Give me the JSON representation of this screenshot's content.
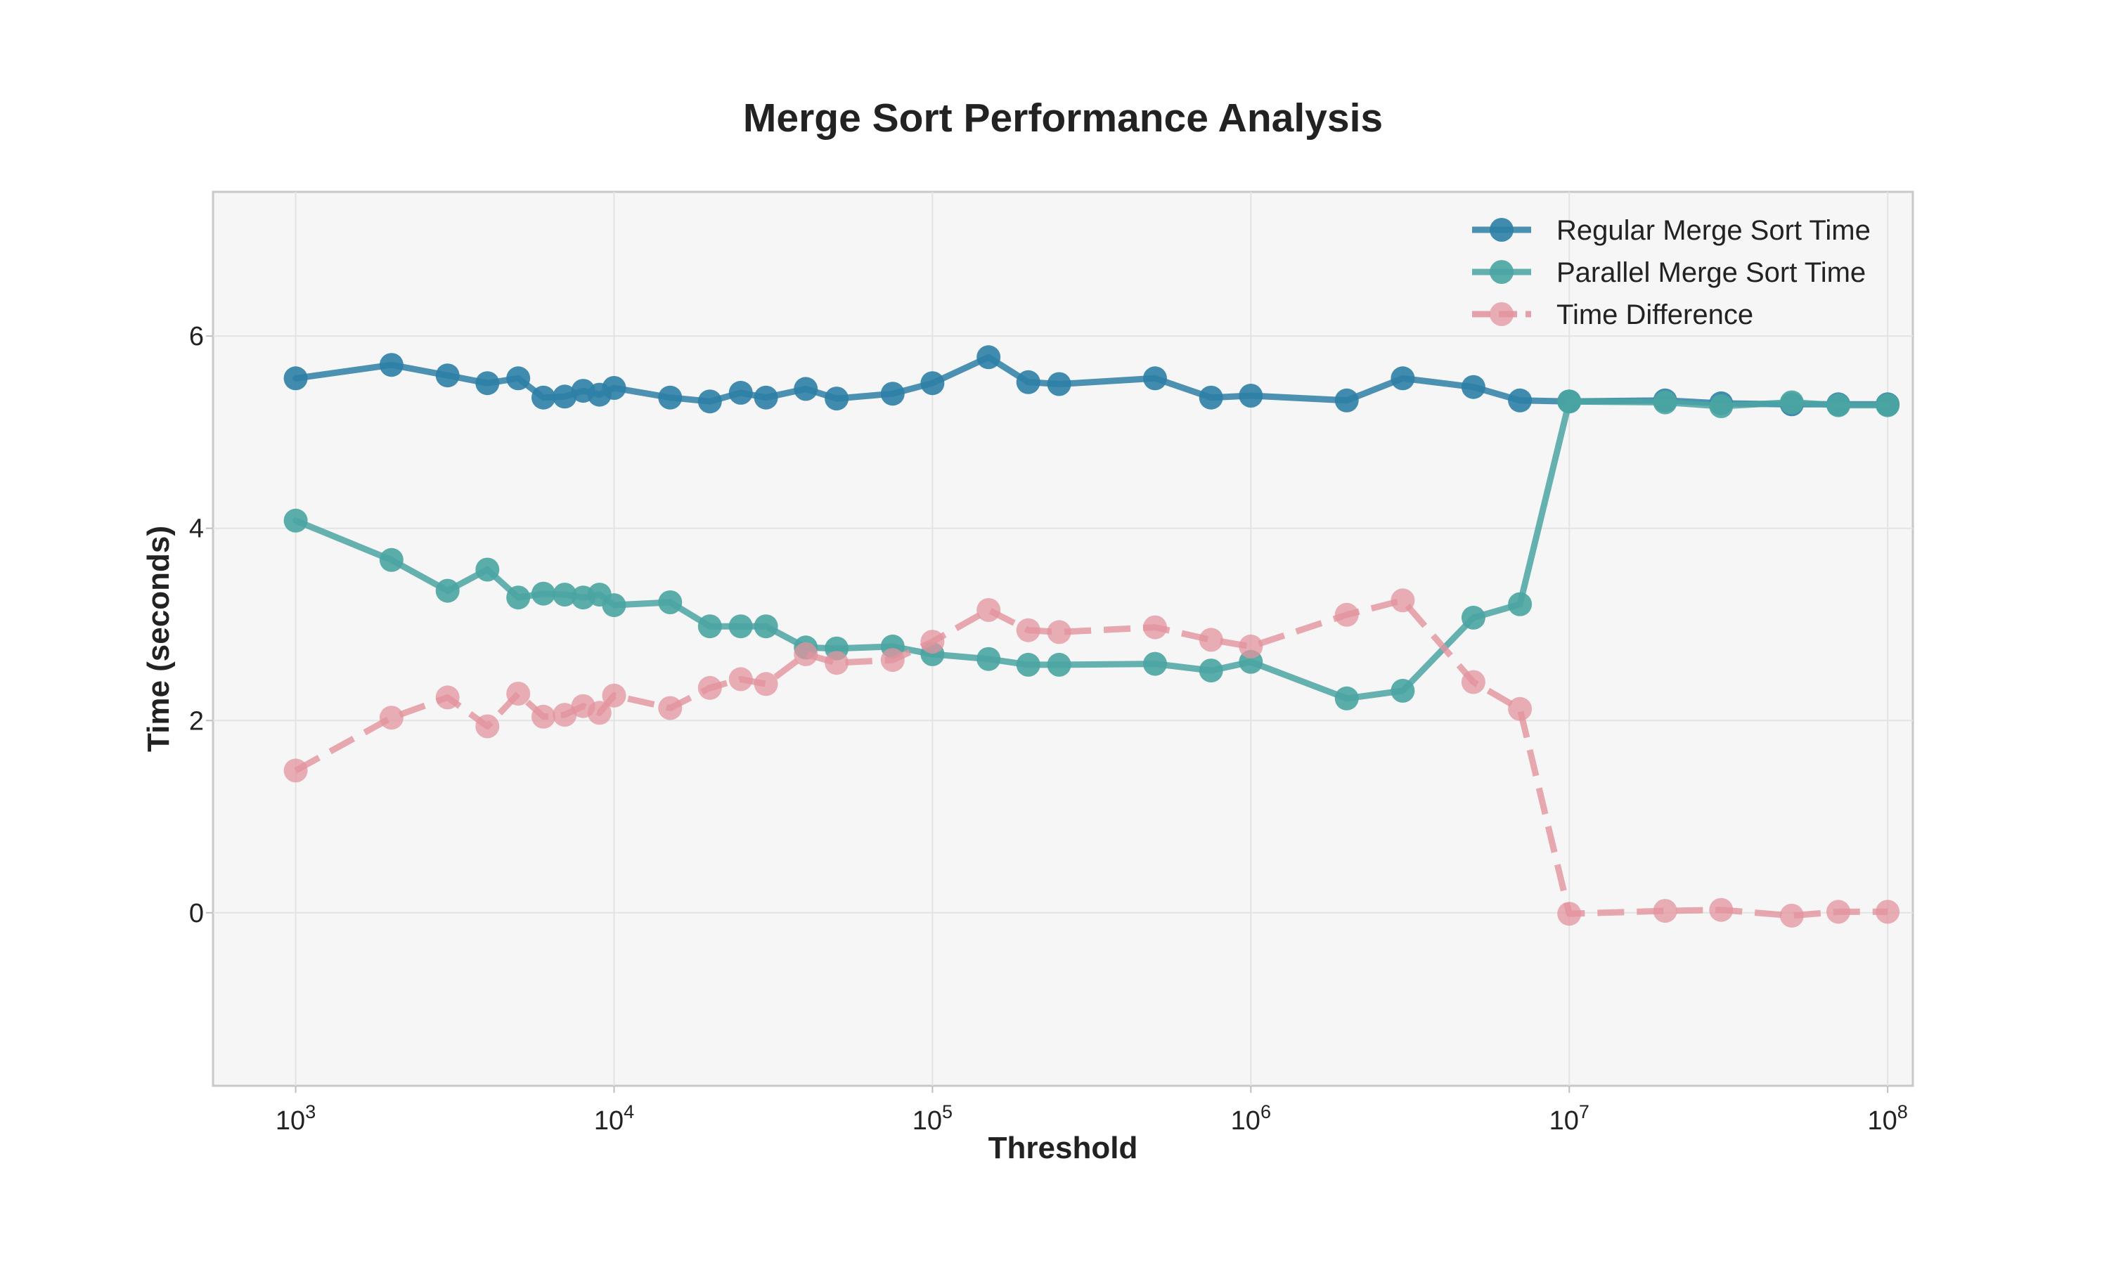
{
  "chart_data": {
    "type": "line",
    "title": "Merge Sort Performance Analysis",
    "xlabel": "Threshold",
    "ylabel": "Time (seconds)",
    "x_scale": "log",
    "xlim": [
      550,
      120000000
    ],
    "ylim": [
      -1.8,
      7.5
    ],
    "x_ticks": [
      {
        "value": 1000,
        "base": "10",
        "exp": "3"
      },
      {
        "value": 10000,
        "base": "10",
        "exp": "4"
      },
      {
        "value": 100000,
        "base": "10",
        "exp": "5"
      },
      {
        "value": 1000000,
        "base": "10",
        "exp": "6"
      },
      {
        "value": 10000000,
        "base": "10",
        "exp": "7"
      },
      {
        "value": 100000000,
        "base": "10",
        "exp": "8"
      }
    ],
    "y_ticks": [
      0,
      2,
      4,
      6
    ],
    "grid": true,
    "legend_position": "top-right",
    "x": [
      1000,
      2000,
      3000,
      4000,
      5000,
      6000,
      7000,
      8000,
      9000,
      10000,
      15000,
      20000,
      25000,
      30000,
      40000,
      50000,
      75000,
      100000,
      150000,
      200000,
      250000,
      500000,
      750000,
      1000000,
      2000000,
      3000000,
      5000000,
      7000000,
      10000000,
      20000000,
      30000000,
      50000000,
      70000000,
      100000000
    ],
    "series": [
      {
        "name": "Regular Merge Sort Time",
        "color": "#2e7fa6",
        "style": "solid",
        "values": [
          5.56,
          5.7,
          5.59,
          5.51,
          5.56,
          5.36,
          5.37,
          5.43,
          5.39,
          5.46,
          5.36,
          5.32,
          5.41,
          5.36,
          5.45,
          5.35,
          5.4,
          5.51,
          5.78,
          5.52,
          5.5,
          5.56,
          5.36,
          5.38,
          5.33,
          5.56,
          5.47,
          5.33,
          5.32,
          5.33,
          5.3,
          5.29,
          5.29,
          5.29
        ]
      },
      {
        "name": "Parallel Merge Sort Time",
        "color": "#4aa5a2",
        "style": "solid",
        "values": [
          4.08,
          3.67,
          3.35,
          3.57,
          3.28,
          3.32,
          3.31,
          3.28,
          3.31,
          3.2,
          3.23,
          2.98,
          2.98,
          2.98,
          2.76,
          2.75,
          2.77,
          2.69,
          2.64,
          2.58,
          2.58,
          2.59,
          2.52,
          2.61,
          2.23,
          2.31,
          3.07,
          3.21,
          5.32,
          5.31,
          5.27,
          5.31,
          5.28,
          5.28
        ]
      },
      {
        "name": "Time Difference",
        "color": "#e3939e",
        "style": "dashed",
        "values": [
          1.48,
          2.03,
          2.24,
          1.94,
          2.28,
          2.04,
          2.06,
          2.15,
          2.08,
          2.26,
          2.13,
          2.34,
          2.43,
          2.38,
          2.69,
          2.6,
          2.63,
          2.82,
          3.15,
          2.94,
          2.92,
          2.97,
          2.84,
          2.77,
          3.1,
          3.25,
          2.4,
          2.12,
          -0.01,
          0.02,
          0.03,
          -0.03,
          0.01,
          0.01
        ]
      }
    ]
  }
}
